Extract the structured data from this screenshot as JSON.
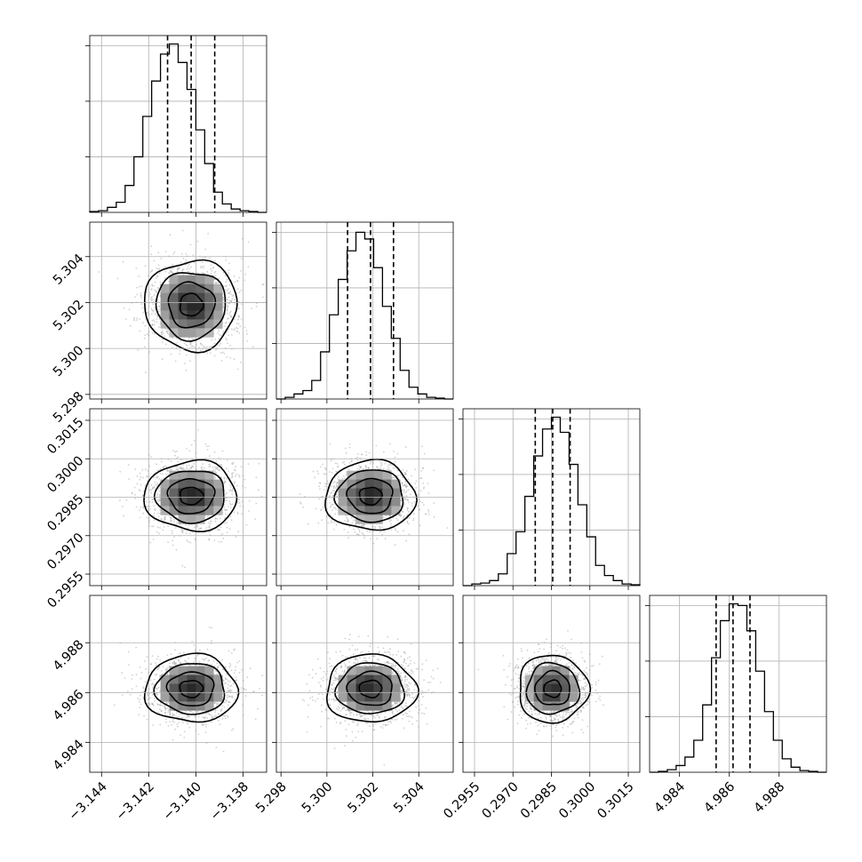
{
  "chart_data": {
    "type": "corner",
    "title": "",
    "grid": true,
    "params": [
      {
        "name": "",
        "range": [
          -3.1445,
          -3.137
        ],
        "ticks": [
          -3.144,
          -3.142,
          -3.14,
          -3.138
        ],
        "tick_labels": [
          "−3.144",
          "−3.142",
          "−3.140",
          "−3.138"
        ],
        "mean": -3.1402,
        "sigma": 0.00098,
        "quantiles": [
          -3.1412,
          -3.1402,
          -3.1392
        ]
      },
      {
        "name": "",
        "range": [
          5.2978,
          5.3055
        ],
        "ticks": [
          5.298,
          5.3,
          5.302,
          5.304
        ],
        "tick_labels": [
          "5.298",
          "5.300",
          "5.302",
          "5.304"
        ],
        "mean": 5.3019,
        "sigma": 0.00098,
        "quantiles": [
          5.3009,
          5.3019,
          5.3029
        ]
      },
      {
        "name": "",
        "range": [
          0.29505,
          0.30195
        ],
        "ticks": [
          0.2955,
          0.297,
          0.2985,
          0.3,
          0.3015
        ],
        "tick_labels": [
          "0.2955",
          "0.2970",
          "0.2985",
          "0.3000",
          "0.3015"
        ],
        "mean": 0.29855,
        "sigma": 0.00068,
        "quantiles": [
          0.29787,
          0.29855,
          0.29923
        ]
      },
      {
        "name": "",
        "range": [
          4.9828,
          4.9899
        ],
        "ticks": [
          4.984,
          4.986,
          4.988
        ],
        "tick_labels": [
          "4.984",
          "4.986",
          "4.988"
        ],
        "mean": 4.98615,
        "sigma": 0.00068,
        "quantiles": [
          4.98547,
          4.98615,
          4.98683
        ]
      }
    ],
    "histograms": [
      {
        "param": 0,
        "values": [
          0.005,
          0.01,
          0.03,
          0.06,
          0.16,
          0.33,
          0.57,
          0.78,
          0.94,
          1.0,
          0.89,
          0.73,
          0.49,
          0.29,
          0.12,
          0.05,
          0.02,
          0.01,
          0.005,
          0.0
        ]
      },
      {
        "param": 1,
        "values": [
          0.0,
          0.01,
          0.03,
          0.05,
          0.11,
          0.28,
          0.5,
          0.71,
          0.88,
          0.99,
          0.95,
          0.78,
          0.55,
          0.36,
          0.17,
          0.07,
          0.03,
          0.01,
          0.005,
          0.0
        ]
      },
      {
        "param": 2,
        "values": [
          0.0,
          0.01,
          0.015,
          0.03,
          0.07,
          0.19,
          0.32,
          0.53,
          0.77,
          0.93,
          1.0,
          0.91,
          0.72,
          0.48,
          0.29,
          0.12,
          0.06,
          0.03,
          0.01,
          0.005
        ]
      },
      {
        "param": 3,
        "values": [
          0.0,
          0.005,
          0.015,
          0.04,
          0.09,
          0.19,
          0.4,
          0.68,
          0.9,
          1.0,
          0.99,
          0.84,
          0.6,
          0.36,
          0.19,
          0.08,
          0.03,
          0.01,
          0.005,
          0.0
        ]
      }
    ],
    "contour_levels_sigma": [
      0.5,
      1.0,
      1.5,
      2.0
    ]
  }
}
